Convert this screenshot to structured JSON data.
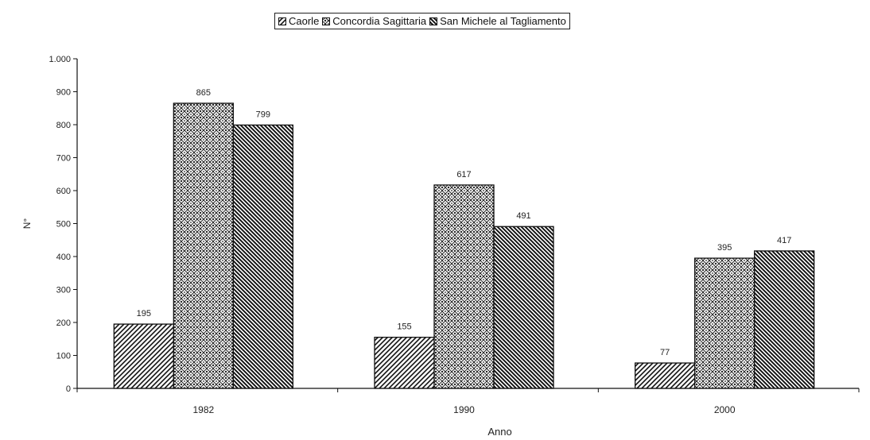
{
  "chart_data": {
    "type": "bar",
    "categories": [
      "1982",
      "1990",
      "2000"
    ],
    "series": [
      {
        "name": "Caorle",
        "values": [
          195,
          155,
          77
        ]
      },
      {
        "name": "Concordia Sagittaria",
        "values": [
          865,
          617,
          395
        ]
      },
      {
        "name": "San Michele al Tagliamento",
        "values": [
          799,
          491,
          417
        ]
      }
    ],
    "data_labels": [
      [
        "195",
        "155",
        "77"
      ],
      [
        "865",
        "617",
        "395"
      ],
      [
        "799",
        "491",
        "417"
      ]
    ],
    "xlabel": "Anno",
    "ylabel": "N°",
    "ylim": [
      0,
      1000
    ],
    "yticks": [
      0,
      100,
      200,
      300,
      400,
      500,
      600,
      700,
      800,
      900,
      1000
    ],
    "ytick_labels": [
      "0",
      "100",
      "200",
      "300",
      "400",
      "500",
      "600",
      "700",
      "800",
      "900",
      "1.000"
    ],
    "grid": false,
    "legend_position": "top-center",
    "patterns": [
      "diagonal-hatch",
      "checker-dots",
      "dense-diagonal"
    ]
  }
}
